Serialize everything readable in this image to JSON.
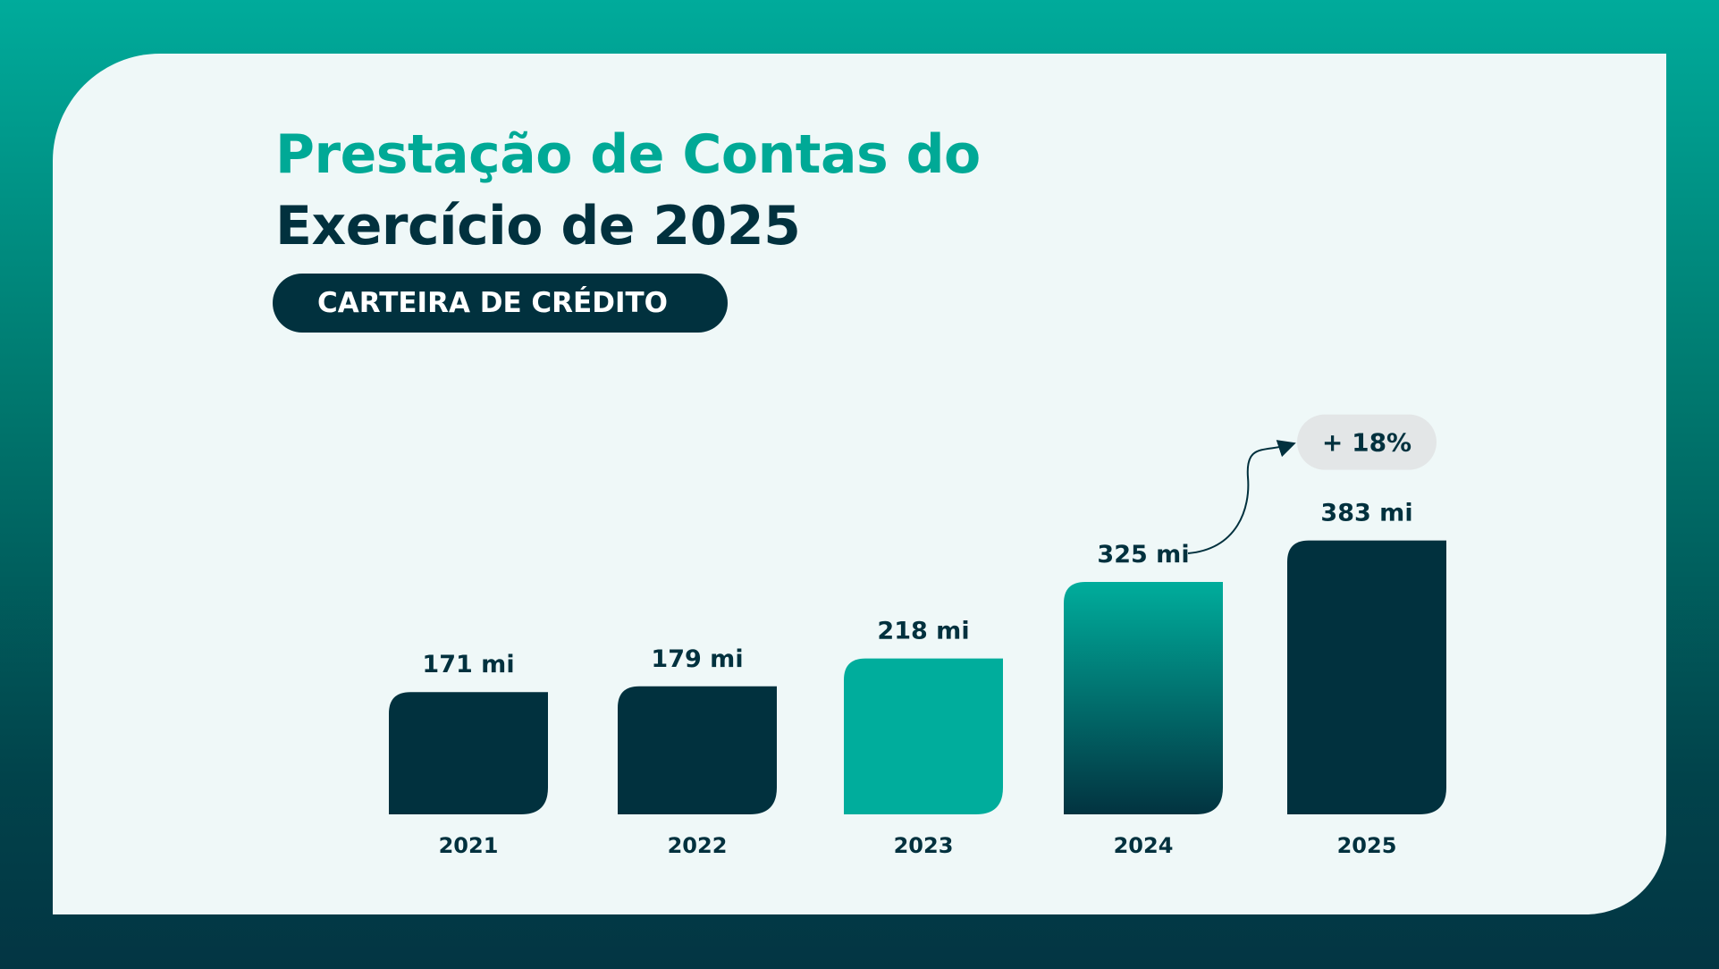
{
  "header": {
    "title_line1": "Prestação de Contas do",
    "title_line2": "Exercício de 2025",
    "section_label": "CARTEIRA DE CRÉDITO"
  },
  "colors": {
    "dark": "#01313e",
    "teal": "#00ad9c",
    "card_bg": "#eff8f8",
    "badge_bg": "#e3e6e7"
  },
  "chart_data": {
    "type": "bar",
    "title": "CARTEIRA DE CRÉDITO",
    "categories": [
      "2021",
      "2022",
      "2023",
      "2024",
      "2025"
    ],
    "values": [
      171,
      179,
      218,
      325,
      383
    ],
    "unit": "mi",
    "value_labels": [
      "171 mi",
      "179 mi",
      "218 mi",
      "325 mi",
      "383 mi"
    ],
    "bar_styles": [
      "dark",
      "dark",
      "teal",
      "gradient",
      "dark"
    ],
    "xlabel": "",
    "ylabel": "",
    "grid": false,
    "annotations": [
      {
        "from": "2024",
        "to": "2025",
        "text": "+ 18%"
      }
    ]
  }
}
